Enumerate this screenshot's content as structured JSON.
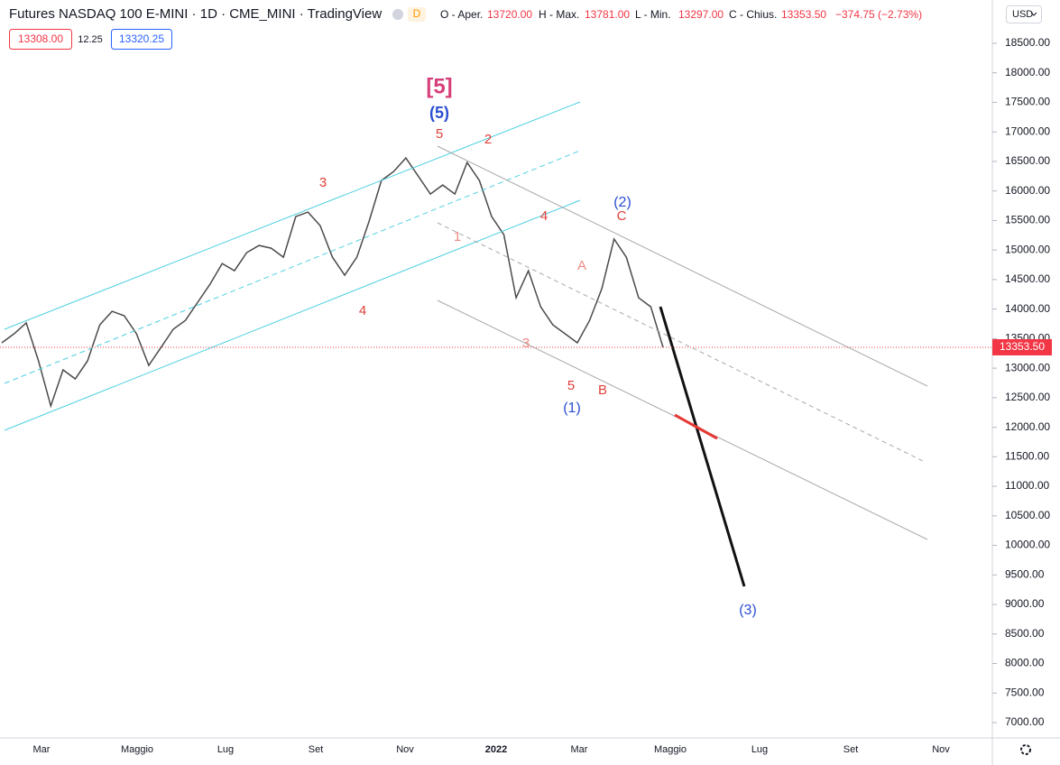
{
  "header": {
    "title": "Futures NASDAQ 100 E-MINI · 1D · CME_MINI · TradingView",
    "badge": "D",
    "open_label": "O - Aper.",
    "open": "13720.00",
    "high_label": "H - Max.",
    "high": "13781.00",
    "low_label": "L - Min.",
    "low": "13297.00",
    "close_label": "C - Chius.",
    "close": "13353.50",
    "change": "−374.75 (−2.73%)",
    "bid": "13308.00",
    "spread": "12.25",
    "ask": "13320.25",
    "currency": "USD"
  },
  "chart_data": {
    "type": "line",
    "color": "#4a4a4a",
    "values": [
      13429,
      13582,
      13765,
      13123,
      12360,
      12971,
      12818,
      13123,
      13734,
      13963,
      13887,
      13582,
      13047,
      13352,
      13658,
      13810,
      14116,
      14421,
      14772,
      14650,
      14956,
      15078,
      15032,
      14879,
      15566,
      15643,
      15414,
      14879,
      14574,
      14879,
      15490,
      16177,
      16330,
      16559,
      16254,
      15948,
      16101,
      15948,
      16483,
      16177,
      15566,
      15261,
      14192,
      14650,
      14039,
      13734,
      13582,
      13429,
      13810,
      14345,
      15185,
      14879,
      14192,
      14039,
      13353.5
    ],
    "time_labels": [
      "Mar",
      "Maggio",
      "Lug",
      "Set",
      "Nov",
      "2022",
      "Mar",
      "Maggio",
      "Lug",
      "Set",
      "Nov"
    ],
    "ylim": [
      6740,
      19233
    ],
    "yticks": [
      {
        "value": 7000,
        "label": "7000.00"
      },
      {
        "value": 7500,
        "label": "7500.00"
      },
      {
        "value": 8000,
        "label": "8000.00"
      },
      {
        "value": 8500,
        "label": "8500.00"
      },
      {
        "value": 9000,
        "label": "9000.00"
      },
      {
        "value": 9500,
        "label": "9500.00"
      },
      {
        "value": 10000,
        "label": "10000.00"
      },
      {
        "value": 10500,
        "label": "10500.00"
      },
      {
        "value": 11000,
        "label": "11000.00"
      },
      {
        "value": 11500,
        "label": "11500.00"
      },
      {
        "value": 12000,
        "label": "12000.00"
      },
      {
        "value": 12500,
        "label": "12500.00"
      },
      {
        "value": 13000,
        "label": "13000.00"
      },
      {
        "value": 13500,
        "label": "13500.00"
      },
      {
        "value": 14000,
        "label": "14000.00"
      },
      {
        "value": 14500,
        "label": "14500.00"
      },
      {
        "value": 15000,
        "label": "15000.00"
      },
      {
        "value": 15500,
        "label": "15500.00"
      },
      {
        "value": 16000,
        "label": "16000.00"
      },
      {
        "value": 16500,
        "label": "16500.00"
      },
      {
        "value": 17000,
        "label": "17000.00"
      },
      {
        "value": 17500,
        "label": "17500.00"
      },
      {
        "value": 18000,
        "label": "18000.00"
      },
      {
        "value": 18500,
        "label": "18500.00"
      }
    ],
    "last_price": {
      "value": 13353.5,
      "label": "13353.50"
    },
    "annotations": [
      "[5]",
      "(5)",
      "5",
      "2",
      "3",
      "4",
      "4",
      "1",
      "A",
      "3",
      "5",
      "(1)",
      "B",
      "(2)",
      "C",
      "(3)"
    ]
  }
}
